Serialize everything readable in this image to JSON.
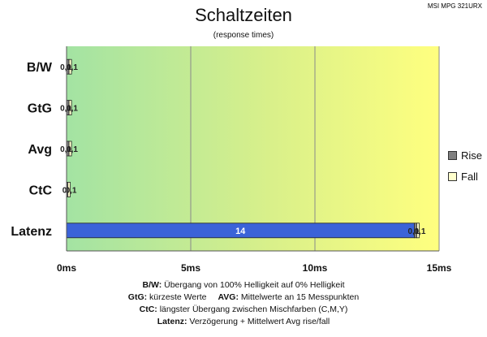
{
  "header": {
    "model": "MSI MPG 321URX",
    "title": "Schaltzeiten",
    "subtitle": "(response times)"
  },
  "legend": [
    {
      "label": "Rise",
      "color": "#808080"
    },
    {
      "label": "Fall",
      "color": "#ffffcc"
    }
  ],
  "footnotes": {
    "bw_key": "B/W:",
    "bw_text": "Übergang von 100% Helligkeit auf 0% Helligkeit",
    "gtg_key": "GtG:",
    "gtg_text": "kürzeste Werte",
    "avg_key": "AVG:",
    "avg_text": "Mittelwerte an 15 Messpunkten",
    "ctc_key": "CtC:",
    "ctc_text": "längster Übergang zwischen Mischfarben (C,M,Y)",
    "latenz_key": "Latenz:",
    "latenz_text": "Verzögerung + Mittelwert Avg rise/fall"
  },
  "chart_data": {
    "type": "bar",
    "orientation": "horizontal",
    "stacked": true,
    "categories": [
      "B/W",
      "GtG",
      "Avg",
      "CtC",
      "Latenz"
    ],
    "series": [
      {
        "name": "Latenz",
        "values": [
          0,
          0,
          0,
          0,
          14
        ],
        "labels": [
          "",
          "",
          "",
          "",
          "14"
        ],
        "color": "#3b63d8"
      },
      {
        "name": "Rise",
        "values": [
          0.1,
          0.1,
          0.1,
          0.05,
          0.1
        ],
        "labels": [
          "0,1",
          "0,1",
          "0,1",
          "0",
          "0,1"
        ],
        "color": "#808080"
      },
      {
        "name": "Fall",
        "values": [
          0.1,
          0.1,
          0.1,
          0.1,
          0.1
        ],
        "labels": [
          "0,1",
          "0,1",
          "0,1",
          "0,1",
          "0,1"
        ],
        "color": "#ffffcc"
      }
    ],
    "xlim": [
      0,
      15
    ],
    "xticks": [
      0,
      5,
      10,
      15
    ],
    "xtick_labels": [
      "0ms",
      "5ms",
      "10ms",
      "15ms"
    ],
    "background_gradient": [
      "#a3e3a3",
      "#d9f08a",
      "#ffff7f"
    ],
    "grid": true,
    "legend_position": "right"
  }
}
